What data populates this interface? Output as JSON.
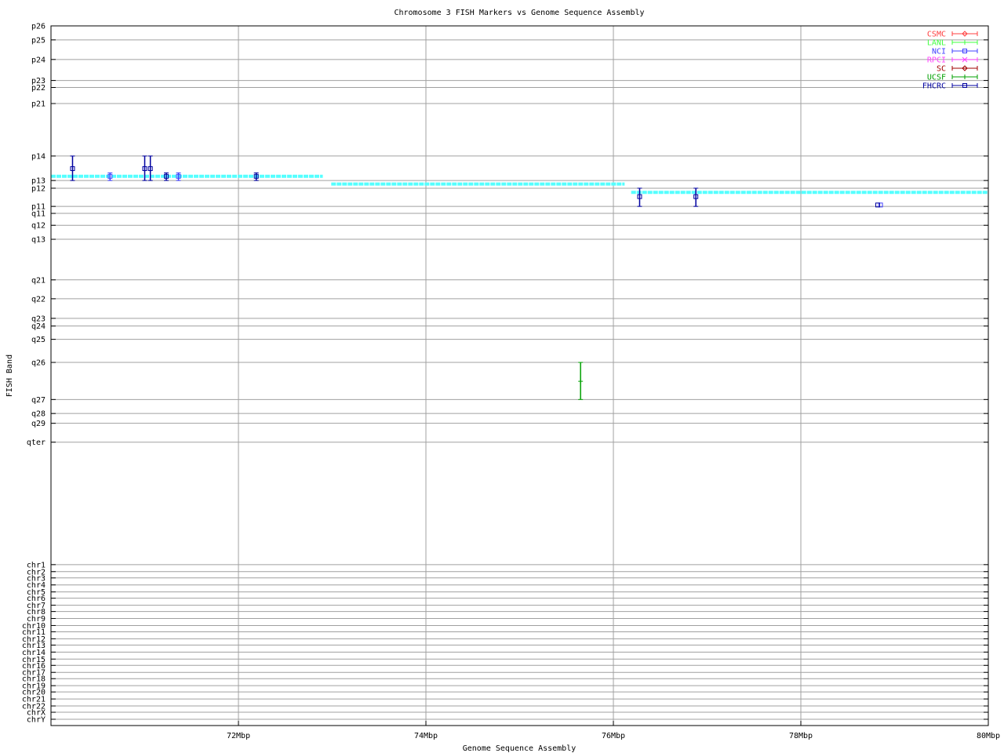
{
  "chart_data": {
    "type": "scatter",
    "title": "Chromosome 3 FISH Markers vs Genome Sequence Assembly",
    "xlabel": "Genome Sequence Assembly",
    "ylabel": "FISH Band",
    "xlim": [
      70,
      80
    ],
    "ylim": [
      0,
      100
    ],
    "y_reversed": true,
    "grid": true,
    "legend_position": "top-right",
    "x_ticks": [
      {
        "value": 72,
        "label": "72Mbp"
      },
      {
        "value": 74,
        "label": "74Mbp"
      },
      {
        "value": 76,
        "label": "76Mbp"
      },
      {
        "value": 78,
        "label": "78Mbp"
      },
      {
        "value": 80,
        "label": "80Mbp"
      }
    ],
    "y_ticks": [
      {
        "value": 0,
        "label": "p26"
      },
      {
        "value": 2.0,
        "label": "p25"
      },
      {
        "value": 4.8,
        "label": "p24"
      },
      {
        "value": 7.8,
        "label": "p23"
      },
      {
        "value": 8.8,
        "label": "p22"
      },
      {
        "value": 11.1,
        "label": "p21"
      },
      {
        "value": 18.6,
        "label": "p14"
      },
      {
        "value": 22.1,
        "label": "p13"
      },
      {
        "value": 23.2,
        "label": "p12"
      },
      {
        "value": 25.8,
        "label": "p11"
      },
      {
        "value": 26.8,
        "label": "q11"
      },
      {
        "value": 28.5,
        "label": "q12"
      },
      {
        "value": 30.5,
        "label": "q13"
      },
      {
        "value": 36.3,
        "label": "q21"
      },
      {
        "value": 39.0,
        "label": "q22"
      },
      {
        "value": 41.8,
        "label": "q23"
      },
      {
        "value": 42.9,
        "label": "q24"
      },
      {
        "value": 44.8,
        "label": "q25"
      },
      {
        "value": 48.1,
        "label": "q26"
      },
      {
        "value": 53.4,
        "label": "q27"
      },
      {
        "value": 55.4,
        "label": "q28"
      },
      {
        "value": 56.8,
        "label": "q29"
      },
      {
        "value": 59.5,
        "label": "qter"
      },
      {
        "value": 77.0,
        "label": "chr1"
      },
      {
        "value": 78.0,
        "label": "chr2"
      },
      {
        "value": 78.9,
        "label": "chr3"
      },
      {
        "value": 79.9,
        "label": "chr4"
      },
      {
        "value": 80.9,
        "label": "chr5"
      },
      {
        "value": 81.8,
        "label": "chr6"
      },
      {
        "value": 82.8,
        "label": "chr7"
      },
      {
        "value": 83.7,
        "label": "chr8"
      },
      {
        "value": 84.7,
        "label": "chr9"
      },
      {
        "value": 85.7,
        "label": "chr10"
      },
      {
        "value": 86.6,
        "label": "chr11"
      },
      {
        "value": 87.6,
        "label": "chr12"
      },
      {
        "value": 88.5,
        "label": "chr13"
      },
      {
        "value": 89.5,
        "label": "chr14"
      },
      {
        "value": 90.5,
        "label": "chr15"
      },
      {
        "value": 91.4,
        "label": "chr16"
      },
      {
        "value": 92.4,
        "label": "chr17"
      },
      {
        "value": 93.3,
        "label": "chr18"
      },
      {
        "value": 94.3,
        "label": "chr19"
      },
      {
        "value": 95.2,
        "label": "chr20"
      },
      {
        "value": 96.2,
        "label": "chr21"
      },
      {
        "value": 97.2,
        "label": "chr22"
      },
      {
        "value": 98.1,
        "label": "chrX"
      },
      {
        "value": 99.1,
        "label": "chrY"
      }
    ],
    "series": [
      {
        "name": "CSMC",
        "color": "#ff4040",
        "marker": "diamond",
        "points": []
      },
      {
        "name": "LANL",
        "color": "#40ff40",
        "marker": "plus",
        "points": []
      },
      {
        "name": "NCI",
        "color": "#4040ff",
        "marker": "square",
        "points": [
          {
            "x": 70.63,
            "y": 21.5,
            "ylow": 21.0,
            "yhigh": 22.1
          },
          {
            "x": 71.36,
            "y": 21.5,
            "ylow": 21.0,
            "yhigh": 22.1
          },
          {
            "x": 78.85,
            "y": 25.6,
            "ylow": 25.6,
            "yhigh": 25.6
          }
        ]
      },
      {
        "name": "RPCI",
        "color": "#ff40ff",
        "marker": "cross",
        "points": []
      },
      {
        "name": "SC",
        "color": "#a00000",
        "marker": "diamond",
        "points": []
      },
      {
        "name": "UCSF",
        "color": "#00a000",
        "marker": "plus",
        "points": [
          {
            "x": 75.65,
            "y": 50.8,
            "ylow": 48.1,
            "yhigh": 53.4
          }
        ]
      },
      {
        "name": "FHCRC",
        "color": "#0000a0",
        "marker": "square",
        "points": [
          {
            "x": 70.23,
            "y": 20.4,
            "ylow": 18.6,
            "yhigh": 22.1
          },
          {
            "x": 71.0,
            "y": 20.4,
            "ylow": 18.6,
            "yhigh": 22.1
          },
          {
            "x": 71.06,
            "y": 20.4,
            "ylow": 18.6,
            "yhigh": 22.1
          },
          {
            "x": 71.23,
            "y": 21.5,
            "ylow": 21.0,
            "yhigh": 22.1
          },
          {
            "x": 72.19,
            "y": 21.5,
            "ylow": 21.0,
            "yhigh": 22.1
          },
          {
            "x": 76.28,
            "y": 24.4,
            "ylow": 23.2,
            "yhigh": 25.8
          },
          {
            "x": 76.88,
            "y": 24.4,
            "ylow": 23.2,
            "yhigh": 25.8
          },
          {
            "x": 78.82,
            "y": 25.6,
            "ylow": 25.6,
            "yhigh": 25.6
          }
        ]
      }
    ],
    "assembly_segments": {
      "color": "#55ffff",
      "segments": [
        {
          "x_start": 70.0,
          "x_end": 72.9,
          "y": 21.5
        },
        {
          "x_start": 72.99,
          "x_end": 76.12,
          "y": 22.6
        },
        {
          "x_start": 76.19,
          "x_end": 80.0,
          "y": 23.8
        }
      ]
    }
  }
}
